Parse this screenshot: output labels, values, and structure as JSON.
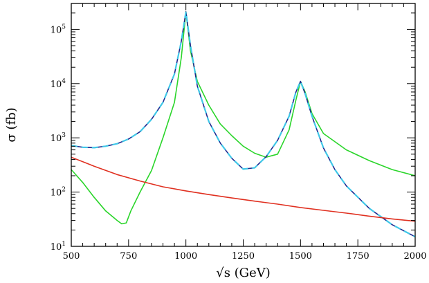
{
  "chart_data": {
    "type": "line",
    "title": "",
    "xlabel": "√s (GeV)",
    "ylabel": "σ (fb)",
    "xlim": [
      500,
      2000
    ],
    "ylim": [
      10,
      300000
    ],
    "yscale": "log",
    "grid": false,
    "legend": "none",
    "x_ticks": [
      500,
      750,
      1000,
      1250,
      1500,
      1750,
      2000
    ],
    "x_tick_labels": [
      "500",
      "750",
      "1000",
      "1250",
      "1500",
      "1750",
      "2000"
    ],
    "y_ticks": [
      10,
      100,
      1000,
      10000,
      100000
    ],
    "y_tick_base": "10",
    "y_tick_exponents": [
      "1",
      "2",
      "3",
      "4",
      "5"
    ],
    "series": [
      {
        "color": "#2ad52a",
        "style": "solid",
        "x": [
          500,
          550,
          600,
          650,
          700,
          720,
          740,
          760,
          800,
          850,
          900,
          950,
          980,
          1000,
          1020,
          1050,
          1100,
          1150,
          1200,
          1250,
          1300,
          1350,
          1400,
          1450,
          1480,
          1500,
          1520,
          1550,
          1600,
          1700,
          1800,
          1900,
          2000
        ],
        "y": [
          260,
          150,
          80,
          45,
          30,
          26,
          27,
          45,
          100,
          250,
          1000,
          4500,
          30000,
          210000,
          40000,
          11000,
          4000,
          1800,
          1100,
          700,
          520,
          440,
          500,
          1400,
          5000,
          11000,
          7000,
          2800,
          1200,
          600,
          380,
          260,
          200
        ]
      },
      {
        "color": "#1f2a8f",
        "style": "solid",
        "x": [
          500,
          550,
          600,
          650,
          700,
          750,
          800,
          850,
          900,
          950,
          980,
          1000,
          1020,
          1050,
          1100,
          1150,
          1200,
          1250,
          1300,
          1350,
          1400,
          1450,
          1480,
          1500,
          1520,
          1550,
          1600,
          1650,
          1700,
          1800,
          1900,
          2000
        ],
        "y": [
          720,
          670,
          660,
          700,
          780,
          950,
          1300,
          2200,
          4500,
          15000,
          60000,
          210000,
          50000,
          9000,
          2000,
          800,
          420,
          265,
          280,
          450,
          900,
          2500,
          7000,
          11000,
          6500,
          2500,
          650,
          260,
          130,
          50,
          25,
          15
        ]
      },
      {
        "color": "#40c8e8",
        "style": "dashed",
        "x": [
          500,
          550,
          600,
          650,
          700,
          750,
          800,
          850,
          900,
          950,
          980,
          1000,
          1020,
          1050,
          1100,
          1150,
          1200,
          1250,
          1300,
          1350,
          1400,
          1450,
          1480,
          1500,
          1520,
          1550,
          1600,
          1650,
          1700,
          1800,
          1900,
          2000
        ],
        "y": [
          720,
          670,
          660,
          700,
          780,
          950,
          1300,
          2200,
          4500,
          15000,
          60000,
          210000,
          50000,
          9000,
          2000,
          800,
          420,
          265,
          280,
          450,
          900,
          2500,
          7000,
          11000,
          6500,
          2500,
          650,
          260,
          130,
          50,
          25,
          15
        ]
      },
      {
        "color": "#e03020",
        "style": "solid",
        "x": [
          500,
          600,
          700,
          800,
          900,
          1000,
          1100,
          1200,
          1300,
          1400,
          1500,
          1600,
          1700,
          1800,
          1900,
          2000
        ],
        "y": [
          440,
          300,
          210,
          160,
          125,
          105,
          90,
          78,
          68,
          60,
          52,
          46,
          41,
          36,
          32,
          29
        ]
      }
    ]
  }
}
